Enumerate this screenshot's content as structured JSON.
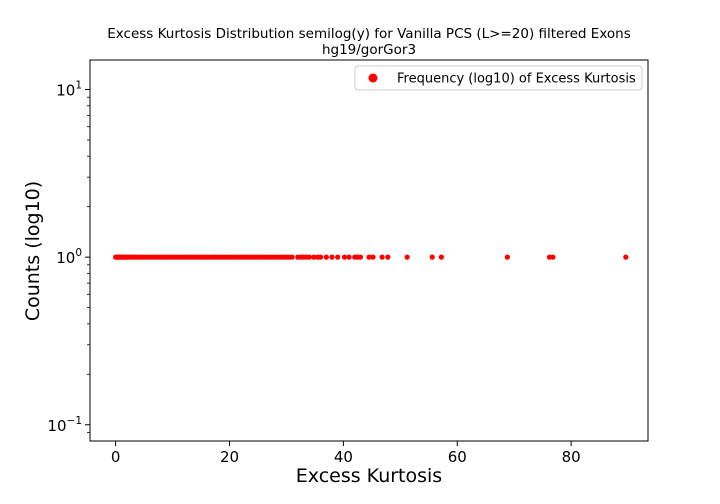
{
  "chart_data": {
    "type": "scatter",
    "title": "Excess Kurtosis Distribution semilog(y) for Vanilla PCS (L>=20) filtered Exons",
    "subtitle": "hg19/gorGor3",
    "xlabel": "Excess Kurtosis",
    "ylabel": "Counts (log10)",
    "yscale": "log",
    "xlim": [
      -4.5,
      93.5
    ],
    "ylim": [
      0.08,
      15
    ],
    "x_ticks": [
      0,
      20,
      40,
      60,
      80
    ],
    "x_tick_labels": [
      "0",
      "20",
      "40",
      "60",
      "80"
    ],
    "y_ticks": [
      0.1,
      1,
      10
    ],
    "y_tick_labels": [
      {
        "base": "10",
        "exp": "−1"
      },
      {
        "base": "10",
        "exp": "0"
      },
      {
        "base": "10",
        "exp": "1"
      }
    ],
    "grid": false,
    "legend_position": "top-right",
    "color": "#ff0000",
    "series": [
      {
        "name": "Frequency (log10) of Excess Kurtosis",
        "x": [
          0.0,
          0.2,
          0.4,
          0.6,
          0.8,
          1.0,
          1.3,
          1.6,
          2.0,
          2.4,
          2.8,
          3.2,
          3.6,
          4.0,
          4.5,
          5.0,
          5.5,
          6.0,
          6.5,
          7.0,
          7.5,
          8.0,
          8.5,
          9.0,
          9.5,
          10.0,
          10.5,
          11.0,
          11.5,
          12.0,
          12.5,
          13.0,
          13.5,
          14.0,
          14.5,
          15.0,
          15.5,
          16.0,
          16.5,
          17.0,
          17.5,
          18.0,
          18.5,
          19.0,
          19.5,
          20.0,
          20.5,
          21.0,
          21.5,
          22.0,
          22.5,
          23.0,
          23.5,
          24.0,
          24.5,
          25.0,
          25.5,
          26.0,
          26.5,
          27.0,
          27.5,
          28.0,
          28.5,
          29.0,
          29.5,
          30.0,
          30.5,
          31.0,
          32.0,
          32.5,
          33.0,
          33.5,
          34.0,
          34.8,
          35.5,
          36.0,
          37.0,
          38.0,
          39.0,
          40.2,
          41.0,
          42.0,
          42.5,
          43.0,
          44.5,
          45.2,
          46.8,
          47.8,
          51.2,
          55.6,
          57.2,
          68.8,
          76.2,
          76.8,
          89.6
        ],
        "y": [
          1,
          1,
          1,
          1,
          1,
          1,
          1,
          1,
          1,
          1,
          1,
          1,
          1,
          1,
          1,
          1,
          1,
          1,
          1,
          1,
          1,
          1,
          1,
          1,
          1,
          1,
          1,
          1,
          1,
          1,
          1,
          1,
          1,
          1,
          1,
          1,
          1,
          1,
          1,
          1,
          1,
          1,
          1,
          1,
          1,
          1,
          1,
          1,
          1,
          1,
          1,
          1,
          1,
          1,
          1,
          1,
          1,
          1,
          1,
          1,
          1,
          1,
          1,
          1,
          1,
          1,
          1,
          1,
          1,
          1,
          1,
          1,
          1,
          1,
          1,
          1,
          1,
          1,
          1,
          1,
          1,
          1,
          1,
          1,
          1,
          1,
          1,
          1,
          1,
          1,
          1,
          1,
          1,
          1,
          1
        ]
      }
    ]
  }
}
